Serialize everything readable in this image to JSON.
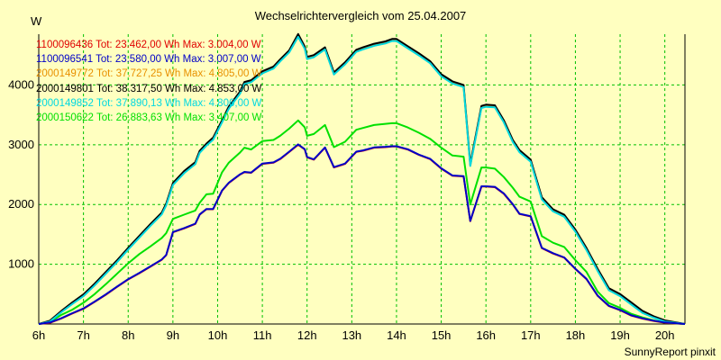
{
  "chart_data": {
    "type": "line",
    "title": "Wechselrichtervergleich vom 25.04.2007",
    "y_unit": "W",
    "xlabel": "",
    "ylabel": "",
    "x_ticks": [
      "6h",
      "7h",
      "8h",
      "9h",
      "10h",
      "11h",
      "12h",
      "13h",
      "14h",
      "15h",
      "16h",
      "17h",
      "18h",
      "19h",
      "20h"
    ],
    "y_ticks": [
      "1000",
      "2000",
      "3000",
      "4000"
    ],
    "xlim": [
      6,
      20.45
    ],
    "ylim": [
      0,
      4850
    ],
    "grid": true,
    "legend_position": "top-left",
    "x": [
      6.0,
      6.25,
      6.5,
      6.75,
      7.0,
      7.25,
      7.5,
      7.75,
      8.0,
      8.25,
      8.5,
      8.75,
      8.85,
      9.0,
      9.25,
      9.5,
      9.6,
      9.75,
      9.9,
      10.1,
      10.25,
      10.5,
      10.6,
      10.75,
      11.0,
      11.25,
      11.4,
      11.6,
      11.8,
      11.95,
      12.0,
      12.15,
      12.4,
      12.6,
      12.85,
      13.1,
      13.25,
      13.5,
      13.75,
      13.9,
      14.0,
      14.25,
      14.5,
      14.75,
      15.0,
      15.25,
      15.5,
      15.65,
      15.9,
      16.0,
      16.2,
      16.4,
      16.6,
      16.75,
      17.0,
      17.25,
      17.5,
      17.75,
      18.0,
      18.25,
      18.5,
      18.75,
      19.0,
      19.25,
      19.5,
      19.75,
      20.0,
      20.45
    ],
    "series": [
      {
        "name": "1100096436",
        "total": "23.462,00 Wh",
        "max": "3.004,00 W",
        "color": "#e00000",
        "values": [
          0,
          20,
          90,
          175,
          255,
          370,
          490,
          620,
          745,
          850,
          960,
          1075,
          1150,
          1535,
          1600,
          1675,
          1830,
          1920,
          1920,
          2230,
          2360,
          2500,
          2540,
          2530,
          2680,
          2700,
          2760,
          2880,
          3000,
          2920,
          2790,
          2750,
          2950,
          2620,
          2680,
          2880,
          2900,
          2950,
          2960,
          2970,
          2970,
          2920,
          2830,
          2760,
          2600,
          2480,
          2470,
          1720,
          2300,
          2300,
          2290,
          2180,
          2000,
          1840,
          1800,
          1270,
          1180,
          1110,
          920,
          750,
          470,
          300,
          230,
          140,
          90,
          50,
          20,
          0
        ]
      },
      {
        "name": "1100096541",
        "total": "23.580,00 Wh",
        "max": "3.007,00 W",
        "color": "#0000c8",
        "values": [
          0,
          25,
          95,
          180,
          260,
          375,
          495,
          625,
          750,
          855,
          965,
          1080,
          1155,
          1540,
          1605,
          1680,
          1835,
          1925,
          1925,
          2235,
          2365,
          2505,
          2545,
          2535,
          2685,
          2705,
          2765,
          2885,
          3007,
          2925,
          2795,
          2755,
          2955,
          2625,
          2685,
          2885,
          2905,
          2955,
          2965,
          2975,
          2975,
          2925,
          2835,
          2765,
          2605,
          2485,
          2475,
          1725,
          2305,
          2305,
          2295,
          2185,
          2005,
          1845,
          1805,
          1275,
          1185,
          1115,
          925,
          755,
          475,
          305,
          235,
          145,
          95,
          55,
          25,
          0
        ]
      },
      {
        "name": "2000149772",
        "total": "37.727,25 Wh",
        "max": "4.805,00 W",
        "color": "#e89000",
        "values": [
          0,
          45,
          200,
          340,
          470,
          650,
          845,
          1040,
          1250,
          1450,
          1650,
          1840,
          1990,
          2330,
          2530,
          2680,
          2870,
          2990,
          3090,
          3380,
          3610,
          3860,
          4020,
          4050,
          4200,
          4280,
          4400,
          4550,
          4805,
          4610,
          4440,
          4470,
          4600,
          4180,
          4350,
          4560,
          4600,
          4660,
          4700,
          4740,
          4740,
          4620,
          4500,
          4370,
          4150,
          4030,
          3970,
          2650,
          3620,
          3640,
          3630,
          3380,
          3050,
          2880,
          2720,
          2090,
          1890,
          1800,
          1550,
          1240,
          890,
          570,
          470,
          330,
          190,
          110,
          45,
          0
        ]
      },
      {
        "name": "2000149801",
        "total": "38.317,50 Wh",
        "max": "4.853,00 W",
        "color": "#000000",
        "values": [
          0,
          55,
          215,
          360,
          495,
          675,
          870,
          1065,
          1275,
          1475,
          1675,
          1865,
          2015,
          2360,
          2560,
          2710,
          2900,
          3020,
          3120,
          3410,
          3640,
          3890,
          4050,
          4080,
          4230,
          4310,
          4430,
          4580,
          4853,
          4640,
          4470,
          4500,
          4630,
          4210,
          4380,
          4590,
          4630,
          4690,
          4730,
          4770,
          4770,
          4650,
          4530,
          4400,
          4180,
          4060,
          4000,
          2680,
          3650,
          3670,
          3660,
          3410,
          3080,
          2910,
          2750,
          2120,
          1920,
          1830,
          1580,
          1270,
          920,
          600,
          500,
          360,
          220,
          130,
          60,
          0
        ]
      },
      {
        "name": "2000149852",
        "total": "37.890,13 Wh",
        "max": "4.806,00 W",
        "color": "#00d8e0",
        "values": [
          0,
          40,
          195,
          335,
          465,
          645,
          840,
          1035,
          1245,
          1445,
          1645,
          1835,
          1985,
          2325,
          2525,
          2675,
          2865,
          2985,
          3085,
          3375,
          3605,
          3855,
          4015,
          4045,
          4195,
          4275,
          4395,
          4545,
          4806,
          4605,
          4435,
          4465,
          4595,
          4175,
          4345,
          4555,
          4595,
          4655,
          4695,
          4735,
          4735,
          4615,
          4495,
          4365,
          4145,
          4025,
          3965,
          2645,
          3615,
          3635,
          3625,
          3375,
          3045,
          2875,
          2715,
          2085,
          1885,
          1795,
          1545,
          1235,
          885,
          565,
          465,
          325,
          185,
          105,
          40,
          0
        ]
      },
      {
        "name": "2000150622",
        "total": "26.883,63 Wh",
        "max": "3.407,00 W",
        "color": "#00e000",
        "values": [
          0,
          35,
          150,
          240,
          355,
          500,
          665,
          840,
          1015,
          1170,
          1300,
          1440,
          1520,
          1760,
          1830,
          1900,
          2030,
          2170,
          2180,
          2540,
          2700,
          2870,
          2950,
          2920,
          3060,
          3080,
          3150,
          3270,
          3407,
          3290,
          3150,
          3180,
          3330,
          2960,
          3050,
          3250,
          3280,
          3330,
          3350,
          3360,
          3360,
          3290,
          3200,
          3100,
          2950,
          2820,
          2800,
          2000,
          2620,
          2620,
          2600,
          2460,
          2280,
          2130,
          2050,
          1470,
          1360,
          1290,
          1070,
          870,
          540,
          350,
          270,
          170,
          110,
          60,
          25,
          0
        ]
      }
    ]
  },
  "footer": {
    "credit": "SunnyReport pinxit"
  }
}
